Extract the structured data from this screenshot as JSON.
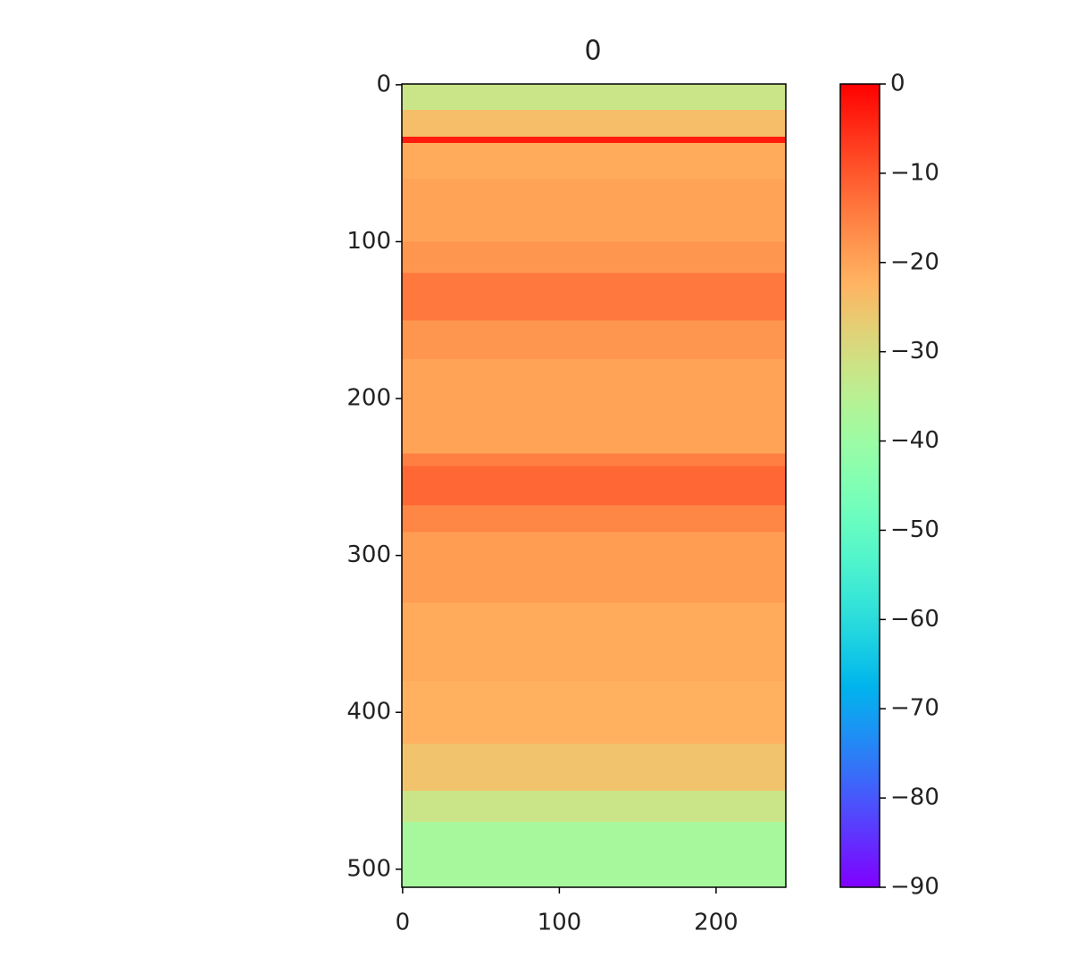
{
  "chart_data": {
    "type": "heatmap",
    "title": "0",
    "colormap": "rainbow",
    "xlim": [
      -0.5,
      244.5
    ],
    "ylim": [
      511.5,
      -0.5
    ],
    "xticks": [
      0,
      100,
      200
    ],
    "yticks": [
      0,
      100,
      200,
      300,
      400,
      500
    ],
    "ybins": [
      -0.5,
      16,
      33,
      37,
      60,
      100,
      120,
      150,
      175,
      235,
      243,
      268,
      285,
      330,
      380,
      420,
      450,
      470,
      511.5
    ],
    "values": [
      -32,
      -24,
      -3,
      -21,
      -20,
      -18,
      -14,
      -18,
      -20,
      -15,
      -12,
      -16,
      -19,
      -21,
      -22,
      -25,
      -32,
      -38
    ],
    "clim": [
      -90,
      0
    ],
    "cticks": [
      0,
      {
        "value": -10,
        "label": "−10"
      },
      {
        "value": -20,
        "label": "−20"
      },
      {
        "value": -30,
        "label": "−30"
      },
      {
        "value": -40,
        "label": "−40"
      },
      {
        "value": -50,
        "label": "−50"
      },
      {
        "value": -60,
        "label": "−60"
      },
      {
        "value": -70,
        "label": "−70"
      },
      {
        "value": -80,
        "label": "−80"
      },
      {
        "value": -90,
        "label": "−90"
      }
    ]
  }
}
